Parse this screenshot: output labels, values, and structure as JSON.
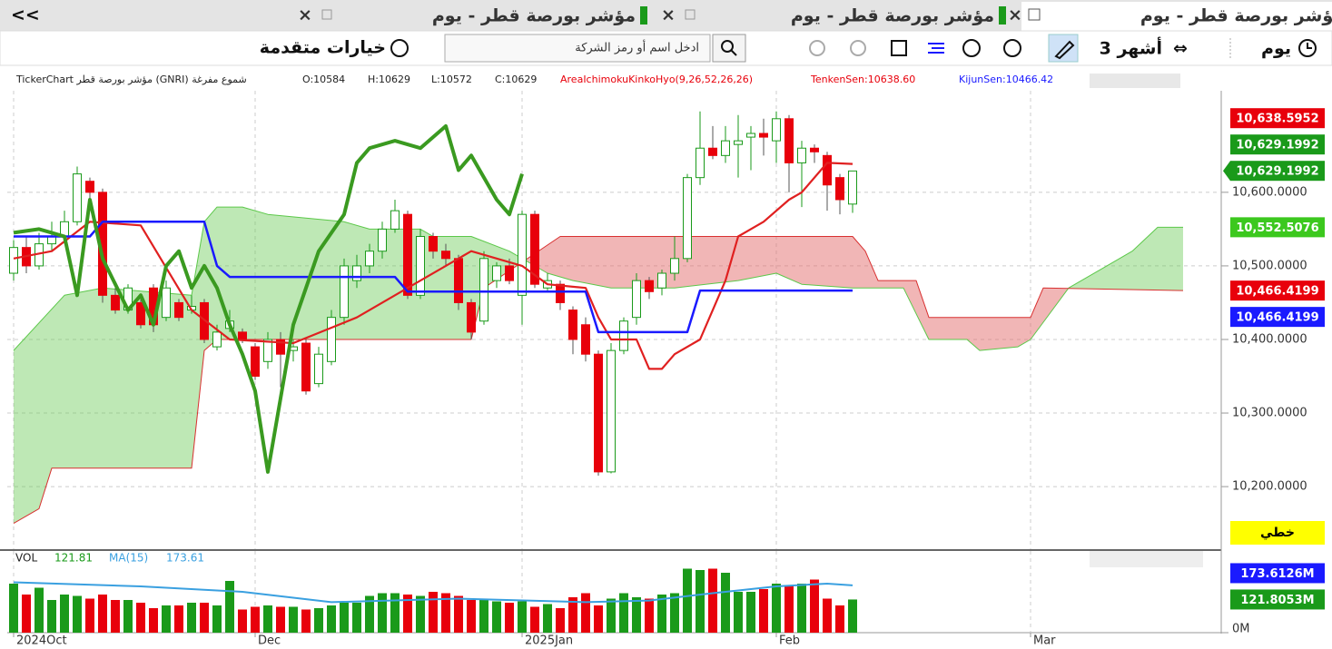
{
  "tabs": {
    "back": "<<",
    "items": [
      "مؤشر بورصة قطر - يوم",
      "مؤشر بورصة قطر - يوم",
      "مؤشر بورصة قطر - يوم"
    ]
  },
  "toolbar": {
    "period": "يوم",
    "range": "3 أشهر",
    "search_placeholder": "ادخل اسم أو رمز الشركة",
    "options": "خيارات متقدمة"
  },
  "chart_data": {
    "type": "candlestick",
    "info": [
      {
        "text": "TickerChart مؤشر بورصة قطر (GNRI) شموع مفرغة",
        "color": "#222222"
      },
      {
        "text": "O:10584",
        "color": "#222222"
      },
      {
        "text": "H:10629",
        "color": "#222222"
      },
      {
        "text": "L:10572",
        "color": "#222222"
      },
      {
        "text": "C:10629",
        "color": "#222222"
      },
      {
        "text": "AreaIchimokuKinkoHyo(9,26,52,26,26)",
        "color": "#e8000b"
      },
      {
        "text": "TenkenSen:10638.60",
        "color": "#e8000b"
      },
      {
        "text": "KijunSen:10466.42",
        "color": "#1a1aff"
      }
    ],
    "xlim": [
      -0.5,
      95
    ],
    "xticks": [
      {
        "value": 0,
        "label": "2024Oct"
      },
      {
        "value": 19,
        "label": "Dec"
      },
      {
        "value": 40,
        "label": "2025Jan"
      },
      {
        "value": 60,
        "label": "Feb"
      },
      {
        "value": 80,
        "label": "Mar"
      }
    ],
    "ylim": [
      10115,
      10738
    ],
    "yticks": [
      {
        "value": 10600,
        "label": "10,600.0000"
      },
      {
        "value": 10500,
        "label": "10,500.0000"
      },
      {
        "value": 10400,
        "label": "10,400.0000"
      },
      {
        "value": 10300,
        "label": "10,300.0000"
      },
      {
        "value": 10200,
        "label": "10,200.0000"
      }
    ],
    "grid": true,
    "candles": {
      "up_color": "#1a9a1a",
      "down_color": "#e8000b",
      "open": [
        10490,
        10525,
        10500,
        10530,
        10540,
        10560,
        10615,
        10600,
        10460,
        10440,
        10450,
        10470,
        10430,
        10450,
        10440,
        10450,
        10390,
        10415,
        10410,
        10390,
        10370,
        10400,
        10385,
        10395,
        10340,
        10370,
        10430,
        10480,
        10500,
        10520,
        10550,
        10570,
        10460,
        10540,
        10520,
        10510,
        10450,
        10425,
        10480,
        10500,
        10460,
        10570,
        10470,
        10475,
        10440,
        10420,
        10380,
        10220,
        10385,
        10430,
        10480,
        10470,
        10490,
        10510,
        10620,
        10660,
        10650,
        10665,
        10675,
        10680,
        10670,
        10700,
        10640,
        10660,
        10650,
        10620,
        10584
      ],
      "high": [
        10535,
        10540,
        10545,
        10560,
        10575,
        10635,
        10620,
        10605,
        10470,
        10475,
        10455,
        10475,
        10480,
        10455,
        10460,
        10455,
        10420,
        10440,
        10415,
        10395,
        10410,
        10410,
        10400,
        10400,
        10390,
        10440,
        10510,
        10515,
        10530,
        10560,
        10590,
        10575,
        10550,
        10545,
        10530,
        10515,
        10455,
        10520,
        10505,
        10510,
        10575,
        10575,
        10490,
        10480,
        10445,
        10430,
        10385,
        10395,
        10430,
        10490,
        10485,
        10495,
        10540,
        10625,
        10710,
        10690,
        10690,
        10705,
        10690,
        10700,
        10710,
        10705,
        10670,
        10665,
        10655,
        10625,
        10629
      ],
      "low": [
        10480,
        10490,
        10495,
        10520,
        10530,
        10555,
        10590,
        10450,
        10435,
        10435,
        10415,
        10410,
        10425,
        10425,
        10435,
        10395,
        10385,
        10410,
        10395,
        10345,
        10360,
        10335,
        10370,
        10325,
        10335,
        10365,
        10420,
        10470,
        10490,
        10510,
        10545,
        10455,
        10455,
        10510,
        10500,
        10440,
        10400,
        10420,
        10470,
        10475,
        10420,
        10470,
        10465,
        10440,
        10380,
        10370,
        10215,
        10218,
        10380,
        10420,
        10455,
        10460,
        10480,
        10505,
        10610,
        10645,
        10640,
        10620,
        10630,
        10650,
        10640,
        10600,
        10580,
        10640,
        10575,
        10570,
        10572
      ],
      "close": [
        10525,
        10500,
        10530,
        10540,
        10560,
        10625,
        10600,
        10460,
        10440,
        10470,
        10420,
        10420,
        10470,
        10430,
        10445,
        10400,
        10410,
        10425,
        10400,
        10350,
        10400,
        10380,
        10390,
        10330,
        10380,
        10430,
        10500,
        10500,
        10520,
        10550,
        10575,
        10460,
        10540,
        10520,
        10510,
        10450,
        10410,
        10510,
        10500,
        10480,
        10570,
        10475,
        10480,
        10450,
        10400,
        10380,
        10220,
        10385,
        10425,
        10480,
        10465,
        10490,
        10510,
        10620,
        10660,
        10650,
        10670,
        10670,
        10680,
        10675,
        10700,
        10640,
        10660,
        10655,
        10610,
        10590,
        10629
      ]
    },
    "cloud": {
      "a": {
        "color": "#5cc84a",
        "x": [
          0,
          4,
          7,
          14,
          15,
          16,
          18,
          20,
          26,
          28,
          32,
          33,
          36,
          39,
          42,
          44,
          47,
          52,
          57,
          60,
          62,
          66,
          70,
          72,
          75,
          76,
          79,
          80,
          83,
          86,
          88,
          90,
          92
        ],
        "values": [
          10385,
          10460,
          10470,
          10460,
          10560,
          10580,
          10580,
          10570,
          10560,
          10550,
          10550,
          10540,
          10540,
          10520,
          10490,
          10480,
          10470,
          10470,
          10480,
          10490,
          10475,
          10470,
          10470,
          10400,
          10400,
          10385,
          10390,
          10400,
          10470,
          10500,
          10520,
          10552.5076,
          10552.5076
        ]
      },
      "b": {
        "color": "#d83030",
        "x": [
          0,
          2,
          3,
          14,
          15,
          16,
          36,
          37,
          43,
          66,
          67,
          68,
          71,
          72,
          80,
          81,
          92
        ],
        "values": [
          10150,
          10170,
          10225,
          10225,
          10385,
          10400,
          10400,
          10470,
          10540,
          10540,
          10520,
          10480,
          10480,
          10430,
          10430,
          10470,
          10466.4199
        ]
      },
      "up_fill": "rgba(110,205,90,0.45)",
      "down_fill": "rgba(228,110,110,0.5)"
    },
    "series": [
      {
        "color": "#e02020",
        "width": 2.2,
        "x": [
          0,
          3,
          6,
          10,
          14,
          17,
          22,
          27,
          31,
          34,
          36,
          40,
          42,
          45,
          46,
          47,
          49,
          50,
          51,
          52,
          54,
          55,
          56,
          57,
          59,
          61,
          62,
          64,
          66
        ],
        "values": [
          10510,
          10520,
          10560,
          10555,
          10440,
          10400,
          10395,
          10430,
          10470,
          10500,
          10520,
          10500,
          10475,
          10470,
          10430,
          10400,
          10400,
          10360,
          10360,
          10380,
          10400,
          10440,
          10480,
          10540,
          10560,
          10590,
          10600,
          10640,
          10638.6
        ]
      },
      {
        "color": "#1a1aff",
        "width": 2.5,
        "x": [
          0,
          6,
          7,
          15,
          16,
          17,
          30,
          31,
          45,
          46,
          53,
          54,
          66
        ],
        "values": [
          10540,
          10540,
          10560,
          10560,
          10500,
          10485,
          10485,
          10465,
          10465,
          10410,
          10410,
          10466.42,
          10466.42
        ]
      },
      {
        "color": "#3a9a20",
        "width": 4,
        "x": [
          0,
          2,
          4,
          5,
          6,
          7,
          9,
          10,
          11,
          12,
          13,
          14,
          15,
          16,
          17,
          18,
          19,
          20,
          22,
          24,
          26,
          27,
          28,
          30,
          32,
          34,
          35,
          36,
          38,
          39,
          40
        ],
        "values": [
          10545,
          10550,
          10540,
          10460,
          10590,
          10510,
          10440,
          10460,
          10420,
          10500,
          10520,
          10470,
          10500,
          10470,
          10420,
          10380,
          10330,
          10220,
          10420,
          10520,
          10570,
          10640,
          10660,
          10670,
          10660,
          10690,
          10630,
          10650,
          10590,
          10570,
          10625
        ]
      }
    ],
    "price_labels": [
      {
        "value": 10638.5952,
        "label": "10,638.5952",
        "color": "#e8000b"
      },
      {
        "value": 10629.1992,
        "label": "10,629.1992",
        "color": "#1a9a1a"
      },
      {
        "value": 10629.1992,
        "label": "10,629.1992",
        "color": "#1a9a1a",
        "pointer": true
      },
      {
        "value": 10552.5076,
        "label": "10,552.5076",
        "color": "#3cc81e"
      },
      {
        "value": 10466.4199,
        "label": "10,466.4199",
        "color": "#e8000b"
      },
      {
        "value": 10466.4199,
        "label": "10,466.4199",
        "color": "#1a1aff"
      }
    ],
    "scale_mode": "خطي",
    "volume": {
      "label": "VOL",
      "ma_name": "MA(15)",
      "ylim": [
        0,
        300
      ],
      "yticks": [
        {
          "value": 0,
          "label": "0M"
        }
      ],
      "values": [
        180,
        140,
        165,
        120,
        140,
        135,
        125,
        140,
        120,
        120,
        110,
        90,
        100,
        100,
        110,
        110,
        100,
        190,
        85,
        95,
        100,
        95,
        95,
        85,
        90,
        100,
        110,
        110,
        135,
        145,
        145,
        140,
        135,
        150,
        145,
        135,
        120,
        120,
        115,
        110,
        115,
        95,
        105,
        90,
        130,
        145,
        100,
        125,
        145,
        130,
        125,
        140,
        145,
        235,
        230,
        235,
        220,
        150,
        150,
        160,
        180,
        175,
        180,
        195,
        125,
        100,
        121.81
      ],
      "ma": {
        "color": "#3aa0e0",
        "x": [
          0,
          10,
          18,
          25,
          35,
          45,
          50,
          55,
          60,
          64,
          66
        ],
        "values": [
          185,
          170,
          150,
          112,
          125,
          112,
          118,
          145,
          170,
          180,
          173.61
        ]
      },
      "labels": [
        {
          "value": 173.6126,
          "label": "173.6126M",
          "color": "#1a1aff"
        },
        {
          "value": 121.8053,
          "label": "121.8053M",
          "color": "#1a9a1a"
        }
      ]
    }
  }
}
